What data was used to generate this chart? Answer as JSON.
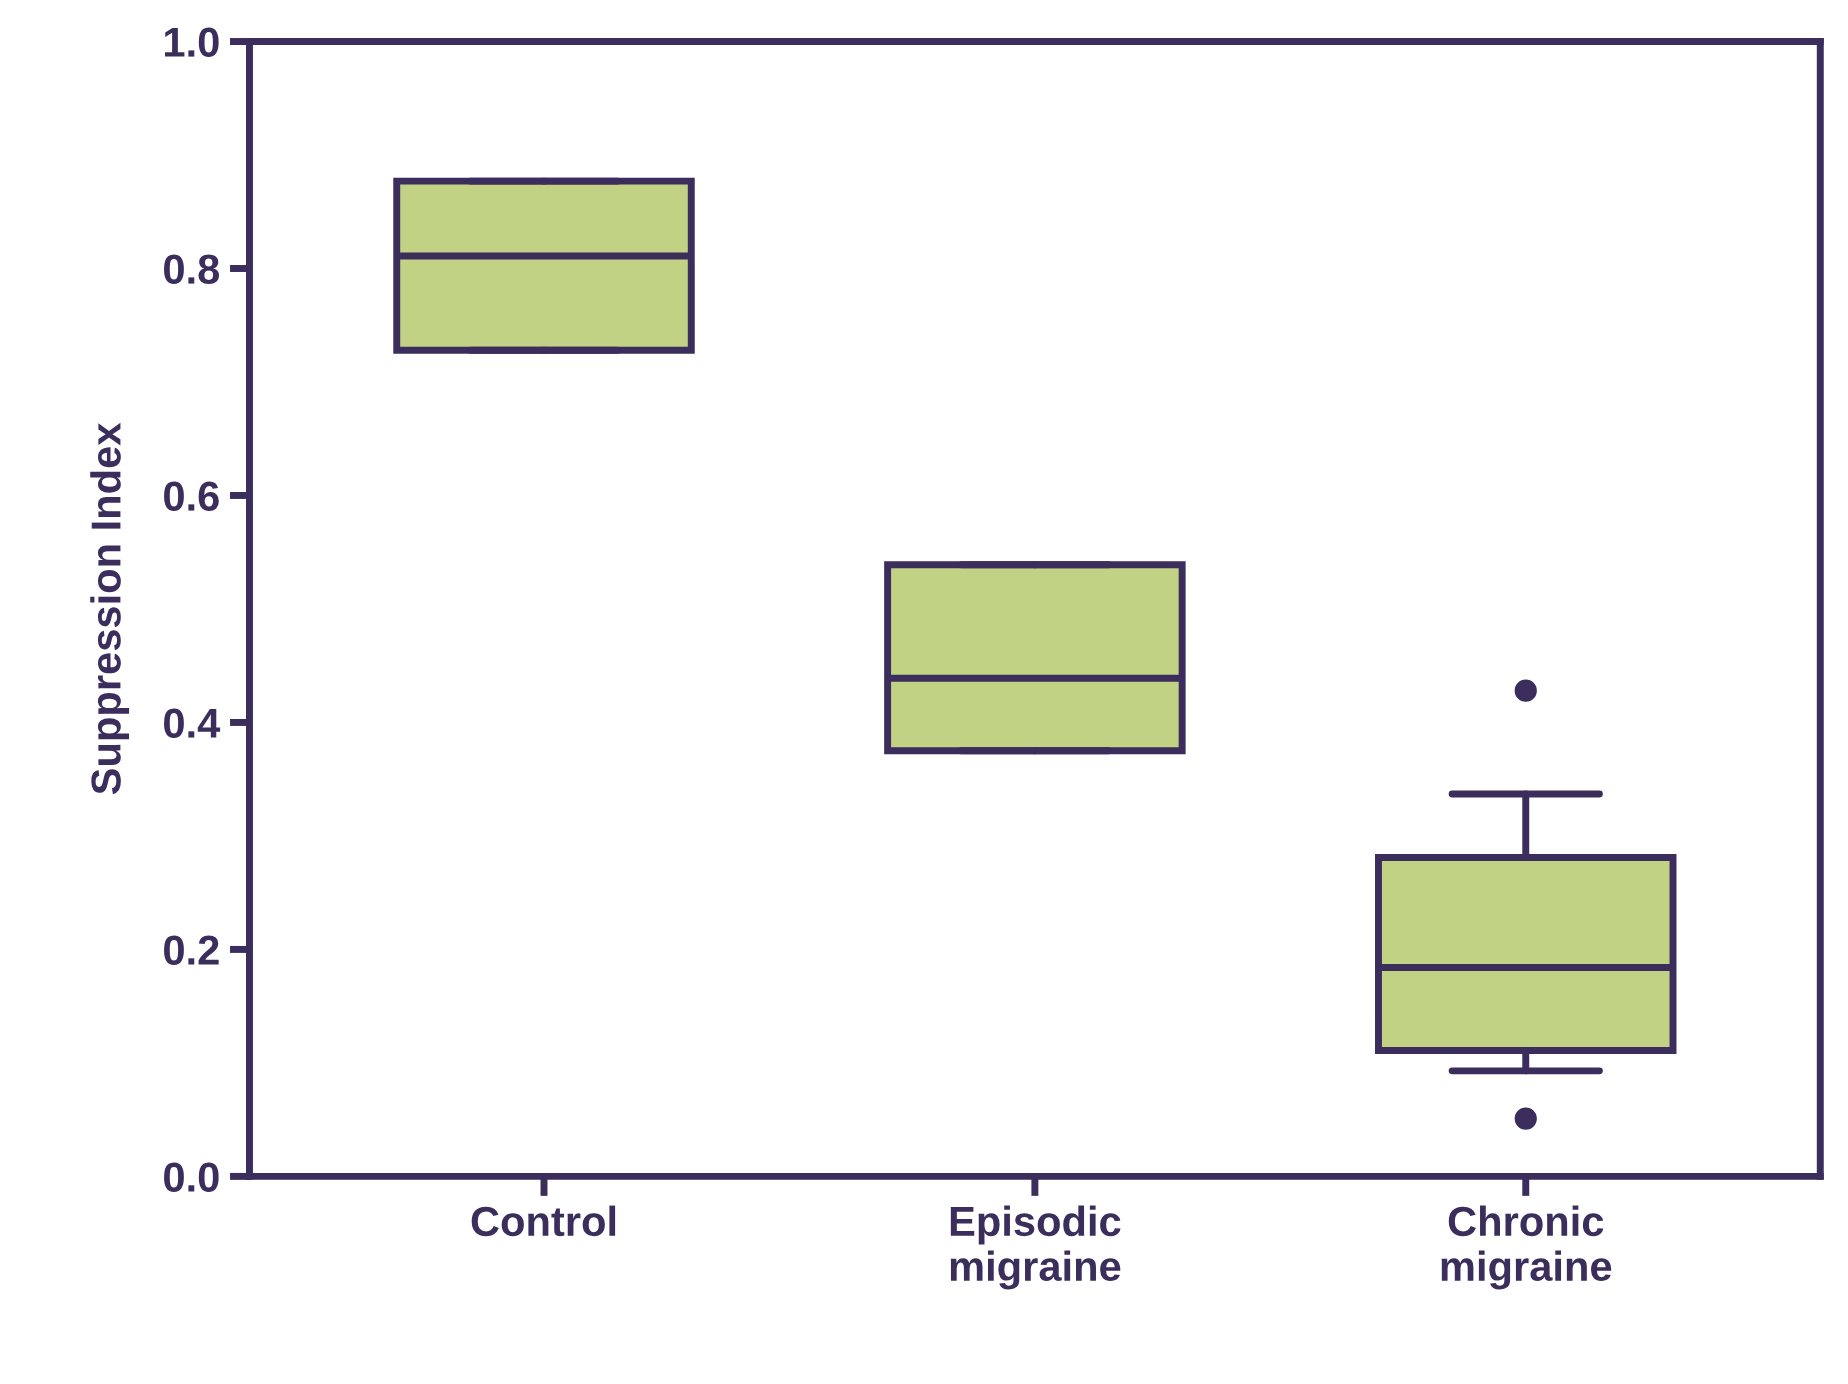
{
  "chart_data": {
    "type": "box",
    "ylabel": "Suppression Index",
    "categories": [
      "Control",
      "Episodic\nmigraine",
      "Chronic\nmigraine"
    ],
    "boxes": [
      {
        "low": 0.728,
        "q1": 0.728,
        "median": 0.811,
        "q3": 0.877,
        "high": 0.877
      },
      {
        "low": 0.375,
        "q1": 0.375,
        "median": 0.439,
        "q3": 0.539,
        "high": 0.539
      },
      {
        "low": 0.093,
        "q1": 0.111,
        "median": 0.184,
        "q3": 0.281,
        "high": 0.337,
        "outliers": [
          0.428,
          0.051
        ]
      }
    ],
    "color": "#c2d284",
    "ylim": [
      0,
      1.0
    ],
    "yticks": [
      {
        "value": 0,
        "label": "0.0"
      },
      0.2,
      0.4,
      0.6,
      0.8,
      {
        "value": 1.0,
        "label": "1.0"
      }
    ],
    "grid": false
  }
}
